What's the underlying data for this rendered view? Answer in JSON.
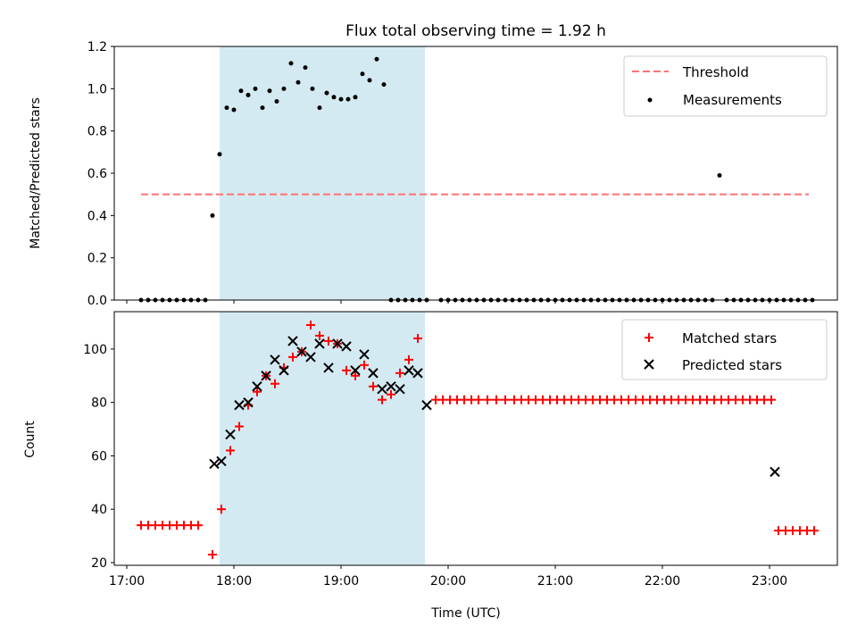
{
  "chart_data": [
    {
      "type": "scatter",
      "title": "Flux total observing time = 1.92 h",
      "ylabel": "Matched/Predicted stars",
      "xlabel": "",
      "xlim": [
        "16:53",
        "23:38"
      ],
      "ylim": [
        0,
        1.2
      ],
      "yticks": [
        0,
        0.2,
        0.4,
        0.6,
        0.8,
        1.0,
        1.2
      ],
      "ytick_labels": [
        "0.0",
        "0.2",
        "0.4",
        "0.6",
        "0.8",
        "1.0",
        "1.2"
      ],
      "shaded_interval": [
        "17:52",
        "19:47"
      ],
      "shaded_color": "#d4eaf2",
      "legend_position": "upper right",
      "threshold": {
        "name": "Threshold",
        "value": 0.5,
        "x_start": "17:08",
        "x_end": "23:22",
        "color": "#ff7070"
      },
      "series": [
        {
          "name": "Measurements",
          "color": "#000000",
          "marker": "dot",
          "x": [
            "17:08",
            "17:12",
            "17:16",
            "17:20",
            "17:24",
            "17:28",
            "17:32",
            "17:36",
            "17:40",
            "17:44",
            "17:48",
            "17:52",
            "17:56",
            "18:00",
            "18:04",
            "18:08",
            "18:12",
            "18:16",
            "18:20",
            "18:24",
            "18:28",
            "18:32",
            "18:36",
            "18:40",
            "18:44",
            "18:48",
            "18:52",
            "18:56",
            "19:00",
            "19:04",
            "19:08",
            "19:12",
            "19:16",
            "19:20",
            "19:24",
            "19:28",
            "19:32",
            "19:36",
            "19:40",
            "19:44",
            "19:48",
            "19:52",
            "19:56",
            "20:00",
            "20:04",
            "20:08",
            "20:12",
            "20:16",
            "20:20",
            "20:24",
            "20:28",
            "20:32",
            "20:36",
            "20:40",
            "20:44",
            "20:48",
            "20:52",
            "20:56",
            "21:00",
            "21:04",
            "21:08",
            "21:12",
            "21:16",
            "21:20",
            "21:24",
            "21:28",
            "21:32",
            "21:36",
            "21:40",
            "21:44",
            "21:48",
            "21:52",
            "21:56",
            "22:00",
            "22:04",
            "22:08",
            "22:12",
            "22:16",
            "22:20",
            "22:24",
            "22:28",
            "22:32",
            "22:36",
            "22:40",
            "22:44",
            "22:48",
            "22:52",
            "22:56",
            "23:00",
            "23:04",
            "23:08",
            "23:12",
            "23:16",
            "23:20",
            "23:24"
          ],
          "y": [
            0,
            0,
            0,
            0,
            0,
            0,
            0,
            0,
            0,
            0,
            0.4,
            0.69,
            0.91,
            0.9,
            0.99,
            0.97,
            1.0,
            0.91,
            0.99,
            0.94,
            1.0,
            1.12,
            1.03,
            1.1,
            1.0,
            0.91,
            0.98,
            0.96,
            0.95,
            0.95,
            0.96,
            1.07,
            1.04,
            1.14,
            1.02,
            0,
            0,
            0,
            0,
            0,
            0,
            null,
            0,
            0,
            0,
            0,
            0,
            0,
            0,
            0,
            0,
            0,
            0,
            0,
            0,
            0,
            0,
            0,
            0,
            0,
            0,
            0,
            0,
            0,
            0,
            0,
            0,
            0,
            0,
            0,
            0,
            0,
            0,
            0,
            0,
            0,
            0,
            0,
            0,
            0,
            0,
            0.59,
            0,
            0,
            0,
            0,
            0,
            0,
            0,
            0,
            0,
            0,
            0,
            0,
            0
          ]
        }
      ]
    },
    {
      "type": "scatter",
      "title": "",
      "ylabel": "Count",
      "xlabel": "Time (UTC)",
      "xlim": [
        "16:53",
        "23:38"
      ],
      "ylim": [
        19,
        114
      ],
      "yticks": [
        20,
        40,
        60,
        80,
        100
      ],
      "ytick_labels": [
        "20",
        "40",
        "60",
        "80",
        "100"
      ],
      "xticks": [
        "17:00",
        "18:00",
        "19:00",
        "20:00",
        "21:00",
        "22:00",
        "23:00"
      ],
      "xtick_labels": [
        "17:00",
        "18:00",
        "19:00",
        "20:00",
        "21:00",
        "22:00",
        "23:00"
      ],
      "shaded_interval": [
        "17:52",
        "19:47"
      ],
      "shaded_color": "#d4eaf2",
      "legend_position": "upper right",
      "series": [
        {
          "name": "Matched stars",
          "color": "#ff0000",
          "marker": "plus",
          "points": [
            [
              "17:08",
              34
            ],
            [
              "17:12",
              34
            ],
            [
              "17:16",
              34
            ],
            [
              "17:20",
              34
            ],
            [
              "17:24",
              34
            ],
            [
              "17:28",
              34
            ],
            [
              "17:32",
              34
            ],
            [
              "17:36",
              34
            ],
            [
              "17:40",
              34
            ],
            [
              "17:48",
              23
            ],
            [
              "17:53",
              40
            ],
            [
              "17:58",
              62
            ],
            [
              "18:03",
              71
            ],
            [
              "18:08",
              79
            ],
            [
              "18:13",
              84
            ],
            [
              "18:18",
              90
            ],
            [
              "18:23",
              87
            ],
            [
              "18:28",
              93
            ],
            [
              "18:33",
              97
            ],
            [
              "18:38",
              99
            ],
            [
              "18:43",
              109
            ],
            [
              "18:48",
              105
            ],
            [
              "18:53",
              103
            ],
            [
              "18:58",
              102
            ],
            [
              "19:03",
              92
            ],
            [
              "19:08",
              90
            ],
            [
              "19:13",
              94
            ],
            [
              "19:18",
              86
            ],
            [
              "19:23",
              81
            ],
            [
              "19:28",
              83
            ],
            [
              "19:33",
              91
            ],
            [
              "19:38",
              96
            ],
            [
              "19:43",
              104
            ],
            [
              "19:53",
              81
            ],
            [
              "19:57",
              81
            ],
            [
              "20:01",
              81
            ],
            [
              "20:05",
              81
            ],
            [
              "20:09",
              81
            ],
            [
              "20:13",
              81
            ],
            [
              "20:17",
              81
            ],
            [
              "20:22",
              81
            ],
            [
              "20:27",
              81
            ],
            [
              "20:32",
              81
            ],
            [
              "20:37",
              81
            ],
            [
              "20:41",
              81
            ],
            [
              "20:45",
              81
            ],
            [
              "20:49",
              81
            ],
            [
              "20:53",
              81
            ],
            [
              "20:57",
              81
            ],
            [
              "21:01",
              81
            ],
            [
              "21:05",
              81
            ],
            [
              "21:09",
              81
            ],
            [
              "21:13",
              81
            ],
            [
              "21:17",
              81
            ],
            [
              "21:21",
              81
            ],
            [
              "21:25",
              81
            ],
            [
              "21:29",
              81
            ],
            [
              "21:33",
              81
            ],
            [
              "21:37",
              81
            ],
            [
              "21:41",
              81
            ],
            [
              "21:45",
              81
            ],
            [
              "21:49",
              81
            ],
            [
              "21:53",
              81
            ],
            [
              "21:57",
              81
            ],
            [
              "22:01",
              81
            ],
            [
              "22:05",
              81
            ],
            [
              "22:09",
              81
            ],
            [
              "22:13",
              81
            ],
            [
              "22:17",
              81
            ],
            [
              "22:21",
              81
            ],
            [
              "22:25",
              81
            ],
            [
              "22:29",
              81
            ],
            [
              "22:33",
              81
            ],
            [
              "22:37",
              81
            ],
            [
              "22:41",
              81
            ],
            [
              "22:45",
              81
            ],
            [
              "22:49",
              81
            ],
            [
              "22:53",
              81
            ],
            [
              "22:57",
              81
            ],
            [
              "23:01",
              81
            ],
            [
              "23:05",
              32
            ],
            [
              "23:09",
              32
            ],
            [
              "23:13",
              32
            ],
            [
              "23:17",
              32
            ],
            [
              "23:21",
              32
            ],
            [
              "23:25",
              32
            ]
          ]
        },
        {
          "name": "Predicted stars",
          "color": "#000000",
          "marker": "x",
          "points": [
            [
              "17:49",
              57
            ],
            [
              "17:53",
              58
            ],
            [
              "17:58",
              68
            ],
            [
              "18:03",
              79
            ],
            [
              "18:08",
              80
            ],
            [
              "18:13",
              86
            ],
            [
              "18:18",
              90
            ],
            [
              "18:23",
              96
            ],
            [
              "18:28",
              92
            ],
            [
              "18:33",
              103
            ],
            [
              "18:38",
              99
            ],
            [
              "18:43",
              97
            ],
            [
              "18:48",
              102
            ],
            [
              "18:53",
              93
            ],
            [
              "18:58",
              102
            ],
            [
              "19:03",
              101
            ],
            [
              "19:08",
              92
            ],
            [
              "19:13",
              98
            ],
            [
              "19:18",
              91
            ],
            [
              "19:23",
              85
            ],
            [
              "19:28",
              86
            ],
            [
              "19:33",
              85
            ],
            [
              "19:38",
              92
            ],
            [
              "19:43",
              91
            ],
            [
              "19:48",
              79
            ],
            [
              "23:03",
              54
            ]
          ]
        }
      ]
    }
  ]
}
